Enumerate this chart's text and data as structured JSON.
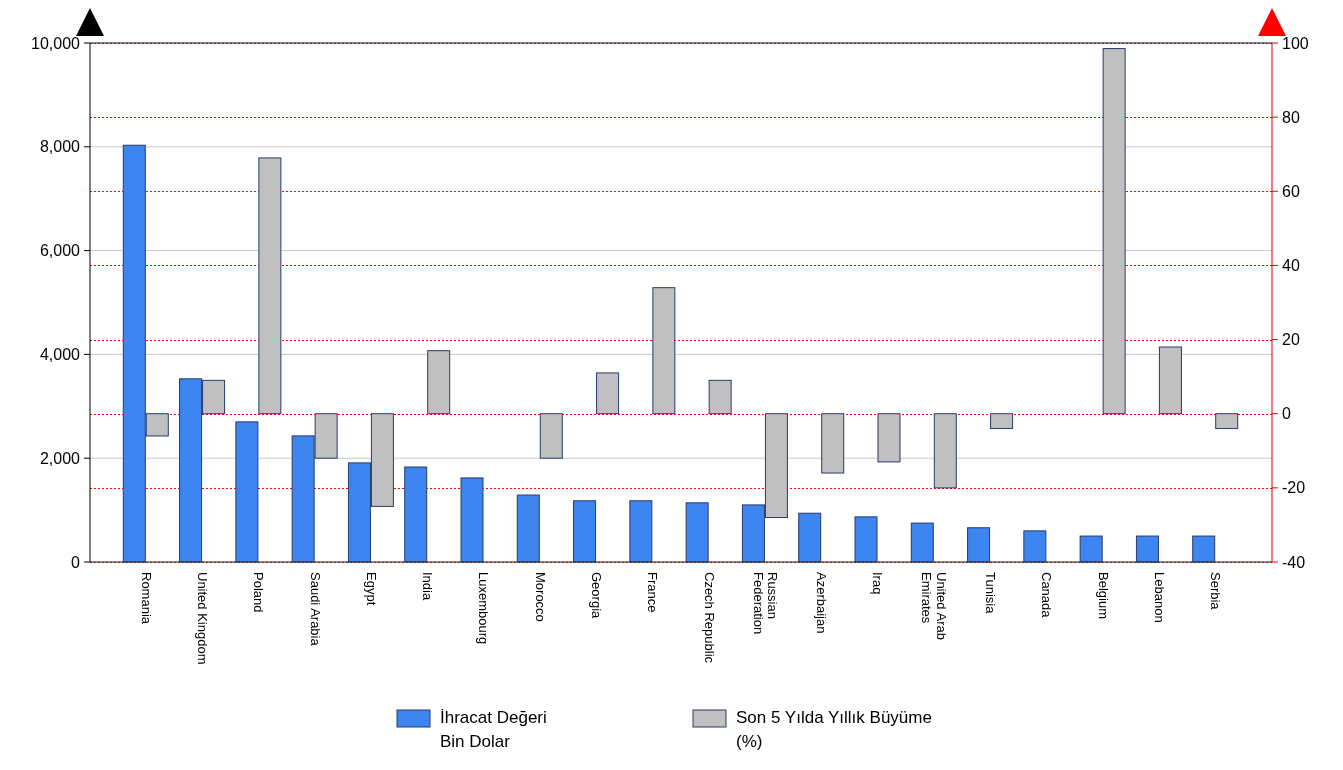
{
  "chart_data": {
    "type": "bar",
    "categories": [
      "Romania",
      "United Kingdom",
      "Poland",
      "Saudi Arabia",
      "Egypt",
      "India",
      "Luxembourg",
      "Morocco",
      "Georgia",
      "France",
      "Czech Republic",
      "Russian Federation",
      "Azerbaijan",
      "Iraq",
      "United Arab Emirates",
      "Tunisia",
      "Canada",
      "Belgium",
      "Lebanon",
      "Serbia"
    ],
    "series": [
      {
        "name": "İhracat Değeri Bin Dolar",
        "color": "#3d85f0",
        "values": [
          8030,
          3530,
          2700,
          2430,
          1910,
          1830,
          1620,
          1290,
          1180,
          1180,
          1140,
          1100,
          940,
          870,
          750,
          660,
          600,
          500,
          500,
          500
        ]
      },
      {
        "name": "Son 5 Yılda Yıllık Büyüme (%)",
        "color": "#c0c0c0",
        "axis": "y2",
        "values": [
          -6,
          9,
          69,
          -12,
          -25,
          17,
          null,
          -12,
          11,
          34,
          9,
          -28,
          -16,
          -13,
          -20,
          -4,
          null,
          98.5,
          18,
          -4
        ]
      }
    ],
    "ylim": [
      0,
      10000
    ],
    "yticks": [
      0,
      {
        "value": 2000,
        "label": "2,000"
      },
      {
        "value": 4000,
        "label": "4,000"
      },
      {
        "value": 6000,
        "label": "6,000"
      },
      {
        "value": 8000,
        "label": "8,000"
      },
      {
        "value": 10000,
        "label": "10,000"
      }
    ],
    "y2lim": [
      -40,
      100
    ],
    "y2ticks": [
      -40,
      -20,
      0,
      20,
      40,
      60,
      80,
      100
    ],
    "grid": true,
    "legend": "bottom"
  }
}
